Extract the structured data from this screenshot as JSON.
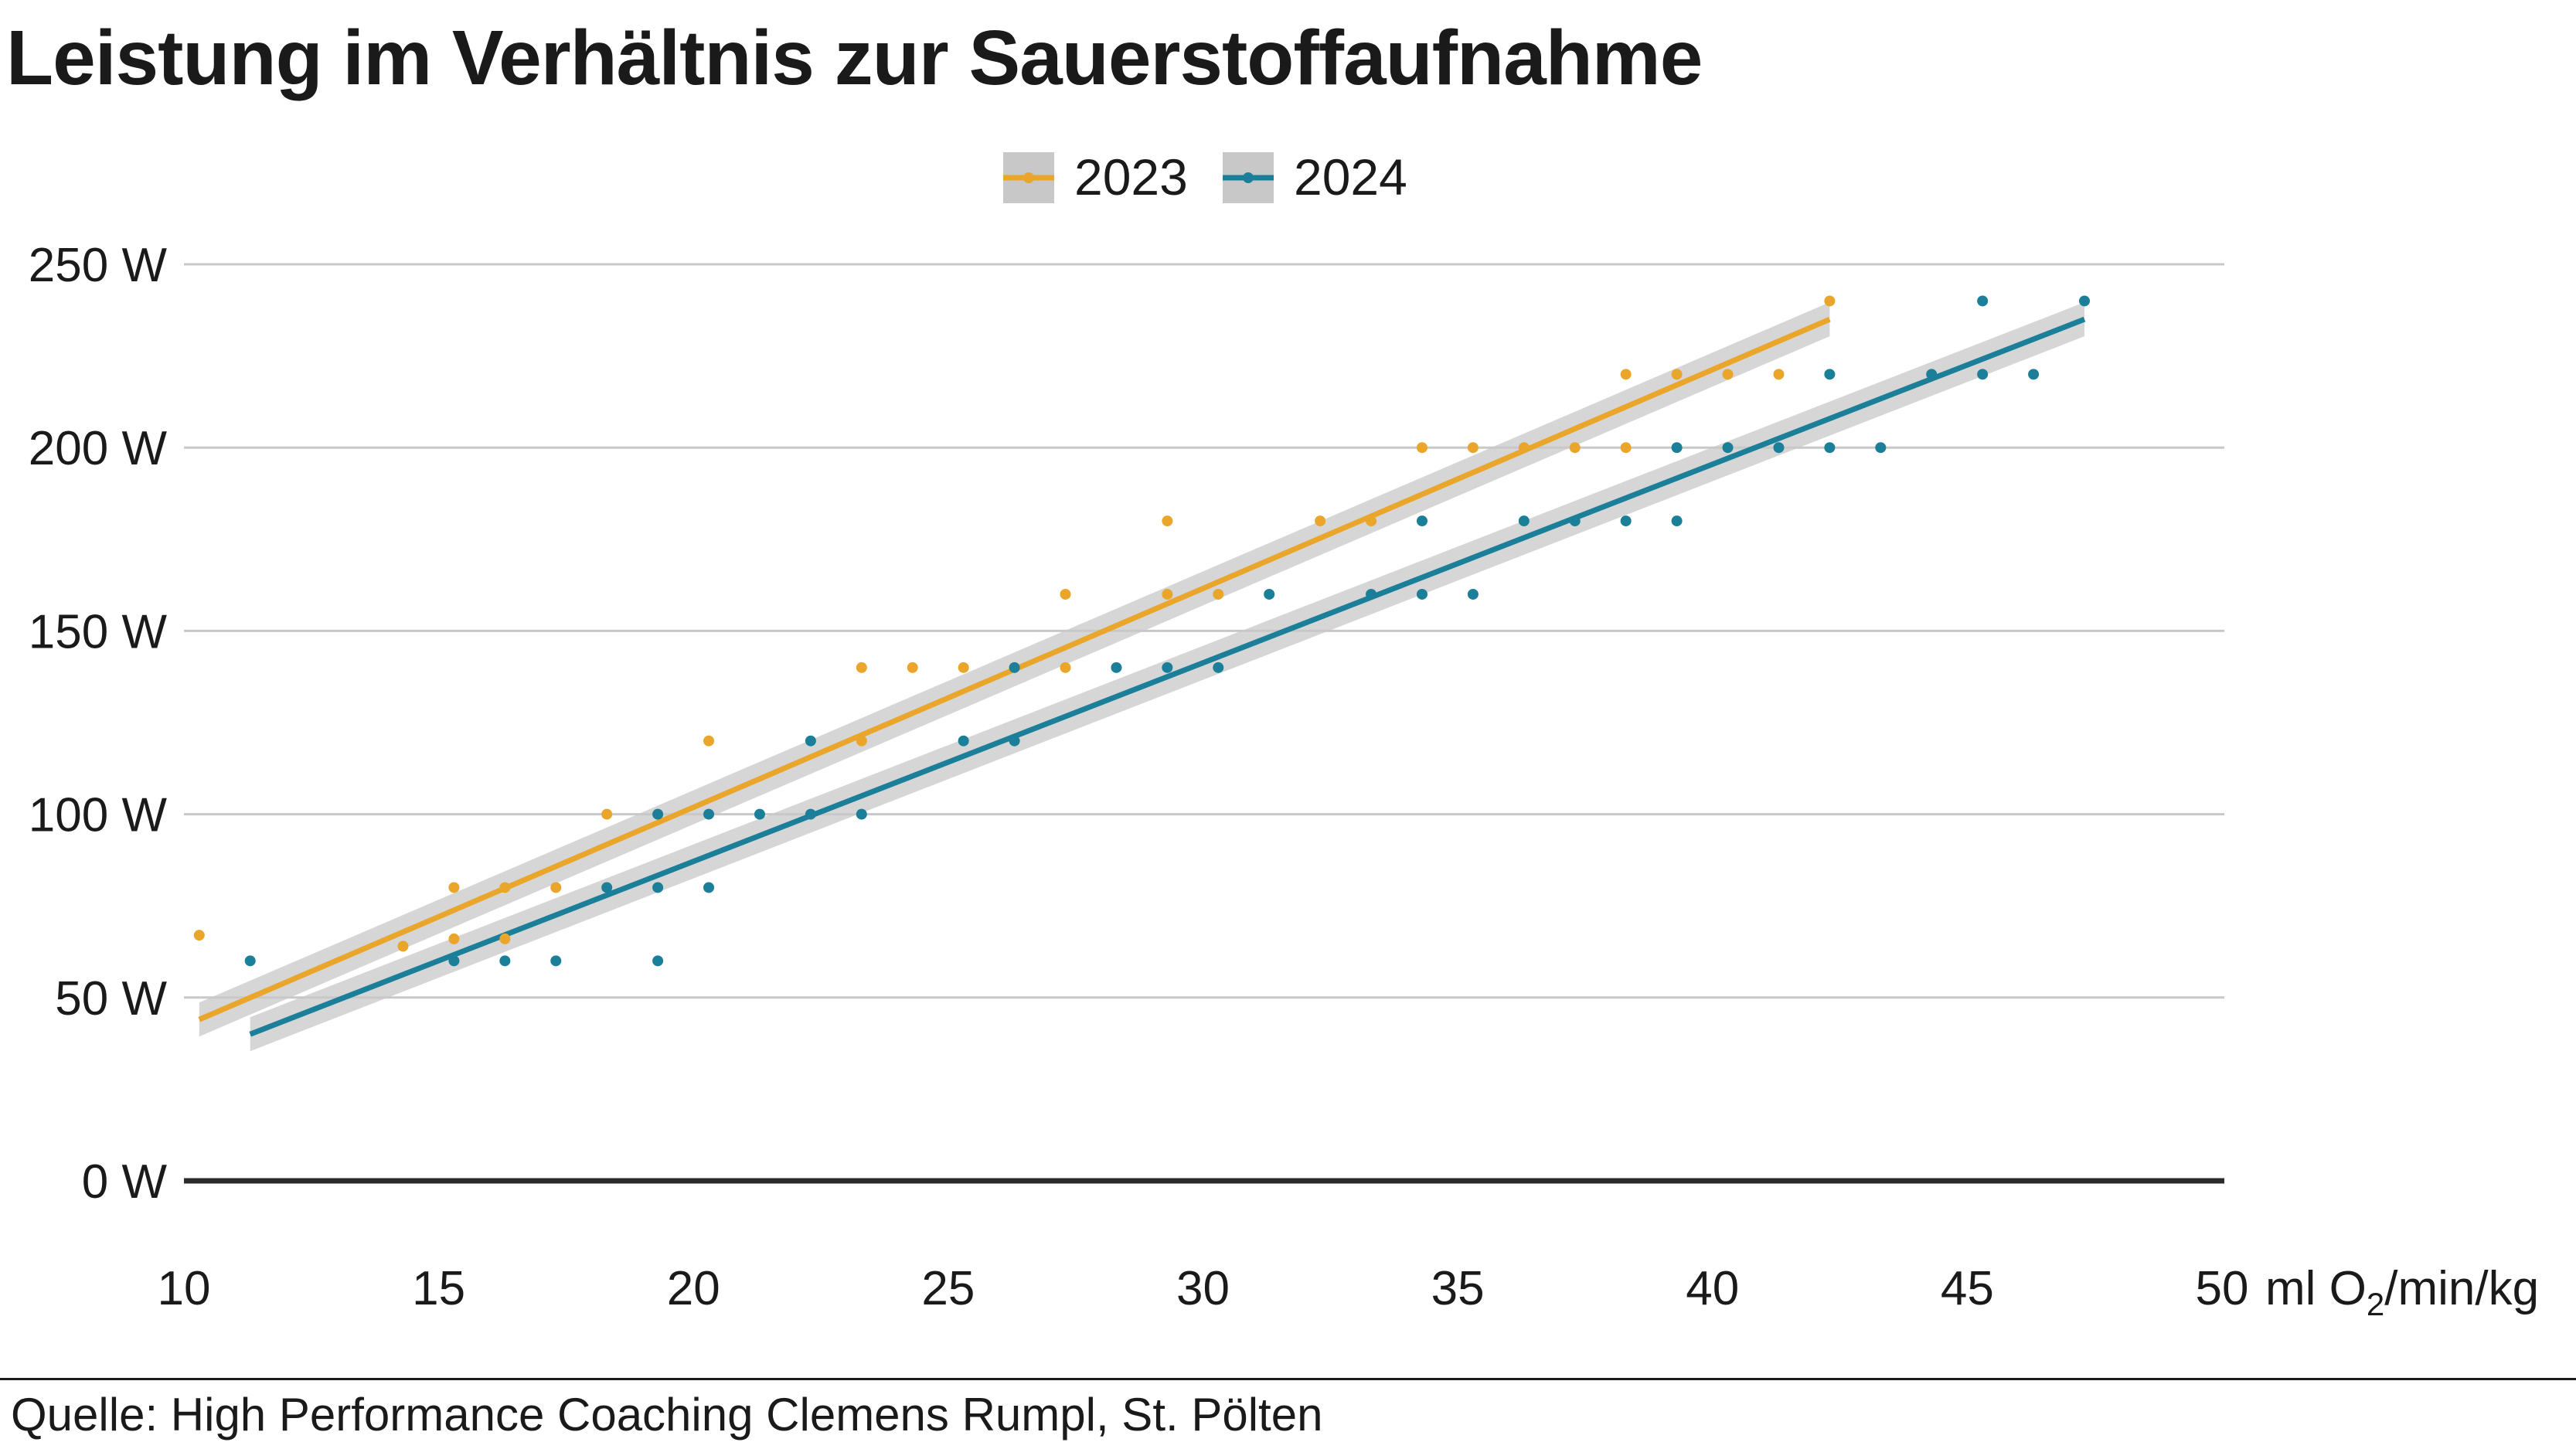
{
  "title": "Leistung im Verhältnis zur Sauerstoffaufnahme",
  "source": "Quelle: High Performance Coaching Clemens Rumpl, St. Pölten",
  "chart_data": {
    "type": "scatter",
    "title": "Leistung im Verhältnis zur Sauerstoffaufnahme",
    "xlabel_parts": {
      "prefix": "ml O",
      "sub": "2",
      "suffix": "/min/kg"
    },
    "x_ticks": [
      10,
      15,
      20,
      25,
      30,
      35,
      40,
      45,
      50
    ],
    "x_tick_labels": [
      "10",
      "15",
      "20",
      "25",
      "30",
      "35",
      "40",
      "45",
      "50"
    ],
    "y_ticks": [
      0,
      50,
      100,
      150,
      200,
      250
    ],
    "y_tick_labels": [
      "0 W",
      "50 W",
      "100 W",
      "150 W",
      "200 W",
      "250 W"
    ],
    "xlim": [
      10,
      50
    ],
    "ylim": [
      0,
      250
    ],
    "grid": "horizontal",
    "legend_position": "top-center",
    "colors": {
      "2023": "#eaa62a",
      "2024": "#1b7f99",
      "band": "#c8c8c8",
      "grid": "#c8c8c8",
      "zero_line": "#2b2b2b"
    },
    "series": [
      {
        "name": "2023",
        "color": "#eaa62a",
        "trend": {
          "x": [
            10.3,
            42.3
          ],
          "y": [
            44,
            235
          ]
        },
        "points": [
          [
            10.3,
            67
          ],
          [
            14.3,
            64
          ],
          [
            15.3,
            66
          ],
          [
            15.3,
            80
          ],
          [
            16.3,
            80
          ],
          [
            16.3,
            66
          ],
          [
            17.3,
            80
          ],
          [
            18.3,
            100
          ],
          [
            19.3,
            100
          ],
          [
            20.3,
            120
          ],
          [
            23.3,
            120
          ],
          [
            23.3,
            140
          ],
          [
            24.3,
            140
          ],
          [
            25.3,
            140
          ],
          [
            26.3,
            140
          ],
          [
            27.3,
            140
          ],
          [
            27.3,
            160
          ],
          [
            29.3,
            160
          ],
          [
            29.3,
            180
          ],
          [
            30.3,
            160
          ],
          [
            32.3,
            180
          ],
          [
            33.3,
            180
          ],
          [
            34.3,
            200
          ],
          [
            35.3,
            200
          ],
          [
            36.3,
            200
          ],
          [
            37.3,
            200
          ],
          [
            38.3,
            200
          ],
          [
            38.3,
            220
          ],
          [
            39.3,
            220
          ],
          [
            40.3,
            220
          ],
          [
            41.3,
            220
          ],
          [
            42.3,
            240
          ]
        ]
      },
      {
        "name": "2024",
        "color": "#1b7f99",
        "trend": {
          "x": [
            11.3,
            47.3
          ],
          "y": [
            40,
            235
          ]
        },
        "points": [
          [
            11.3,
            60
          ],
          [
            15.3,
            60
          ],
          [
            16.3,
            60
          ],
          [
            17.3,
            60
          ],
          [
            18.3,
            80
          ],
          [
            19.3,
            80
          ],
          [
            19.3,
            60
          ],
          [
            19.3,
            100
          ],
          [
            20.3,
            100
          ],
          [
            20.3,
            80
          ],
          [
            21.3,
            100
          ],
          [
            22.3,
            100
          ],
          [
            22.3,
            120
          ],
          [
            23.3,
            100
          ],
          [
            25.3,
            120
          ],
          [
            26.3,
            120
          ],
          [
            26.3,
            140
          ],
          [
            28.3,
            140
          ],
          [
            29.3,
            140
          ],
          [
            30.3,
            140
          ],
          [
            31.3,
            160
          ],
          [
            33.3,
            160
          ],
          [
            34.3,
            160
          ],
          [
            34.3,
            180
          ],
          [
            35.3,
            160
          ],
          [
            36.3,
            180
          ],
          [
            37.3,
            180
          ],
          [
            38.3,
            180
          ],
          [
            39.3,
            180
          ],
          [
            39.3,
            200
          ],
          [
            40.3,
            200
          ],
          [
            41.3,
            200
          ],
          [
            42.3,
            200
          ],
          [
            42.3,
            220
          ],
          [
            43.3,
            200
          ],
          [
            44.3,
            220
          ],
          [
            45.3,
            220
          ],
          [
            45.3,
            240
          ],
          [
            46.3,
            220
          ],
          [
            47.3,
            240
          ]
        ]
      }
    ]
  }
}
